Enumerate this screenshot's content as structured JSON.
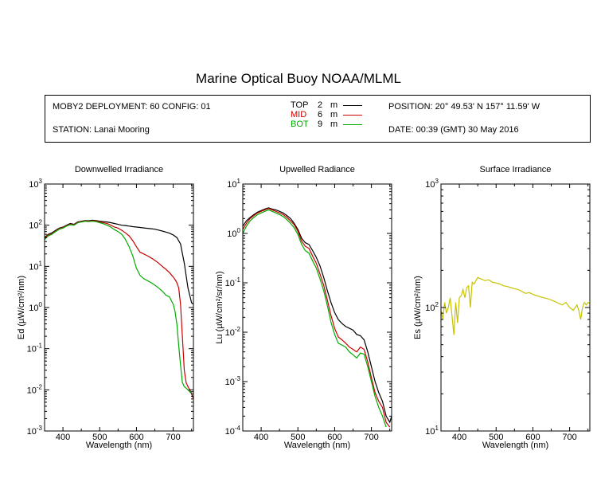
{
  "title": "Marine Optical Buoy NOAA/MLML",
  "info": {
    "deployment": "MOBY2 DEPLOYMENT: 60 CONFIG: 01",
    "station": "STATION: Lanai Mooring",
    "position": "POSITION: 20° 49.53' N   157° 11.59' W",
    "date": "DATE: 00:39 (GMT) 30 May 2016",
    "legend": [
      {
        "name": "TOP",
        "depth": "2",
        "unit": "m",
        "color": "#000000"
      },
      {
        "name": "MID",
        "depth": "6",
        "unit": "m",
        "color": "#cc0000"
      },
      {
        "name": "BOT",
        "depth": "9",
        "unit": "m",
        "color": "#00aa00"
      }
    ]
  },
  "chart_data": [
    {
      "type": "line",
      "title": "Downwelled Irradiance",
      "xlabel": "Wavelength (nm)",
      "ylabel": "Ed  (µW/cm²/nm)",
      "xlim": [
        350,
        755
      ],
      "ylim": [
        0.001,
        1000
      ],
      "yscale": "log",
      "xticks": [
        400,
        500,
        600,
        700
      ],
      "yticks": [
        {
          "value": 0.001,
          "base": "10",
          "exp": "-3"
        },
        {
          "value": 0.01,
          "base": "10",
          "exp": "-2"
        },
        {
          "value": 0.1,
          "base": "10",
          "exp": "-1"
        },
        {
          "value": 1,
          "base": "10",
          "exp": "0"
        },
        {
          "value": 10,
          "base": "10",
          "exp": "1"
        },
        {
          "value": 100,
          "base": "10",
          "exp": "2"
        },
        {
          "value": 1000,
          "base": "10",
          "exp": "3"
        }
      ],
      "series": [
        {
          "name": "TOP",
          "color": "#000000",
          "x": [
            350,
            360,
            370,
            380,
            390,
            400,
            410,
            420,
            430,
            440,
            450,
            460,
            470,
            480,
            490,
            500,
            510,
            520,
            530,
            540,
            550,
            560,
            570,
            580,
            590,
            600,
            610,
            620,
            630,
            640,
            650,
            660,
            670,
            680,
            690,
            700,
            710,
            720,
            730,
            740,
            750,
            755
          ],
          "y": [
            50,
            60,
            65,
            75,
            85,
            90,
            100,
            110,
            105,
            120,
            125,
            130,
            128,
            132,
            130,
            125,
            122,
            120,
            115,
            110,
            105,
            100,
            98,
            95,
            92,
            90,
            88,
            86,
            84,
            82,
            80,
            76,
            72,
            68,
            64,
            58,
            50,
            35,
            12,
            3,
            1.3,
            1.2
          ]
        },
        {
          "name": "MID",
          "color": "#cc0000",
          "x": [
            350,
            360,
            370,
            380,
            390,
            400,
            410,
            420,
            430,
            440,
            450,
            460,
            470,
            480,
            490,
            500,
            510,
            520,
            530,
            540,
            550,
            560,
            570,
            580,
            590,
            600,
            610,
            620,
            630,
            640,
            650,
            660,
            670,
            680,
            690,
            700,
            705,
            710,
            715,
            720,
            725,
            730,
            735,
            740,
            745,
            750,
            755
          ],
          "y": [
            48,
            58,
            62,
            72,
            82,
            88,
            97,
            106,
            102,
            117,
            122,
            127,
            125,
            128,
            126,
            120,
            115,
            110,
            100,
            90,
            85,
            75,
            65,
            55,
            42,
            30,
            22,
            20,
            18,
            16,
            14,
            12,
            10,
            8.5,
            7,
            5.5,
            4.8,
            4,
            3,
            1.2,
            0.2,
            0.03,
            0.015,
            0.012,
            0.01,
            0.008,
            0.006
          ]
        },
        {
          "name": "BOT",
          "color": "#00aa00",
          "x": [
            350,
            360,
            370,
            380,
            390,
            400,
            410,
            420,
            430,
            440,
            450,
            460,
            470,
            480,
            490,
            500,
            510,
            520,
            530,
            540,
            550,
            560,
            570,
            580,
            590,
            600,
            610,
            620,
            630,
            640,
            650,
            660,
            670,
            680,
            690,
            700,
            705,
            710,
            715,
            720,
            725,
            730,
            735,
            740,
            745,
            750
          ],
          "y": [
            45,
            55,
            60,
            70,
            80,
            85,
            95,
            103,
            100,
            114,
            120,
            124,
            122,
            125,
            122,
            115,
            108,
            100,
            90,
            78,
            70,
            60,
            45,
            30,
            18,
            9,
            6,
            5,
            4.5,
            4,
            3.5,
            3,
            2.5,
            2,
            1.8,
            1.2,
            0.8,
            0.4,
            0.12,
            0.04,
            0.015,
            0.012,
            0.011,
            0.01,
            0.009,
            0.008
          ]
        }
      ]
    },
    {
      "type": "line",
      "title": "Upwelled Radiance",
      "xlabel": "Wavelength (nm)",
      "ylabel": "Lu  (µW/cm²/sr/nm)",
      "xlim": [
        350,
        755
      ],
      "ylim": [
        0.0001,
        10
      ],
      "yscale": "log",
      "xticks": [
        400,
        500,
        600,
        700
      ],
      "yticks": [
        {
          "value": 0.0001,
          "base": "10",
          "exp": "-4"
        },
        {
          "value": 0.001,
          "base": "10",
          "exp": "-3"
        },
        {
          "value": 0.01,
          "base": "10",
          "exp": "-2"
        },
        {
          "value": 0.1,
          "base": "10",
          "exp": "-1"
        },
        {
          "value": 1,
          "base": "10",
          "exp": "0"
        },
        {
          "value": 10,
          "base": "10",
          "exp": "1"
        }
      ],
      "series": [
        {
          "name": "TOP",
          "color": "#000000",
          "x": [
            350,
            360,
            370,
            380,
            390,
            400,
            410,
            420,
            430,
            440,
            450,
            460,
            470,
            480,
            490,
            500,
            510,
            520,
            530,
            540,
            550,
            560,
            570,
            580,
            590,
            600,
            610,
            620,
            630,
            640,
            650,
            660,
            670,
            680,
            690,
            700,
            710,
            720,
            730,
            740,
            750,
            755
          ],
          "y": [
            1.4,
            1.8,
            2.1,
            2.4,
            2.7,
            2.9,
            3.1,
            3.3,
            3.1,
            3.0,
            2.8,
            2.6,
            2.3,
            2.0,
            1.6,
            1.2,
            0.8,
            0.65,
            0.6,
            0.45,
            0.33,
            0.22,
            0.13,
            0.07,
            0.04,
            0.025,
            0.018,
            0.015,
            0.013,
            0.012,
            0.011,
            0.009,
            0.0085,
            0.007,
            0.004,
            0.002,
            0.001,
            0.0006,
            0.0004,
            0.0002,
            0.00015,
            0.0002
          ]
        },
        {
          "name": "MID",
          "color": "#cc0000",
          "x": [
            350,
            360,
            370,
            380,
            390,
            400,
            410,
            420,
            430,
            440,
            450,
            460,
            470,
            480,
            490,
            500,
            510,
            520,
            530,
            540,
            550,
            560,
            570,
            580,
            590,
            600,
            610,
            620,
            630,
            640,
            650,
            660,
            670,
            680,
            690,
            700,
            710,
            720,
            730,
            740,
            750
          ],
          "y": [
            1.2,
            1.6,
            2.0,
            2.3,
            2.6,
            2.8,
            3.0,
            3.2,
            3.0,
            2.8,
            2.6,
            2.4,
            2.1,
            1.8,
            1.5,
            1.1,
            0.7,
            0.55,
            0.5,
            0.35,
            0.25,
            0.15,
            0.09,
            0.045,
            0.022,
            0.012,
            0.008,
            0.007,
            0.006,
            0.005,
            0.0045,
            0.004,
            0.005,
            0.0045,
            0.0025,
            0.0012,
            0.0006,
            0.0004,
            0.0003,
            0.00015,
            0.00012
          ]
        },
        {
          "name": "BOT",
          "color": "#00aa00",
          "x": [
            350,
            360,
            370,
            380,
            390,
            400,
            410,
            420,
            430,
            440,
            450,
            460,
            470,
            480,
            490,
            500,
            510,
            520,
            530,
            540,
            550,
            560,
            570,
            580,
            590,
            600,
            610,
            620,
            630,
            640,
            650,
            660,
            670,
            680,
            690,
            700,
            710,
            720,
            730,
            740
          ],
          "y": [
            1.0,
            1.4,
            1.8,
            2.1,
            2.4,
            2.6,
            2.8,
            3.0,
            2.8,
            2.6,
            2.4,
            2.2,
            1.9,
            1.6,
            1.3,
            0.95,
            0.6,
            0.45,
            0.4,
            0.28,
            0.2,
            0.12,
            0.07,
            0.035,
            0.016,
            0.009,
            0.006,
            0.0055,
            0.005,
            0.004,
            0.0035,
            0.003,
            0.0038,
            0.0036,
            0.002,
            0.001,
            0.0005,
            0.0003,
            0.0002,
            0.00012
          ]
        }
      ]
    },
    {
      "type": "line",
      "title": "Surface Irradiance",
      "xlabel": "Wavelength (nm)",
      "ylabel": "Es  (µW/cm²/nm)",
      "xlim": [
        350,
        755
      ],
      "ylim": [
        10,
        1000
      ],
      "yscale": "log",
      "xticks": [
        400,
        500,
        600,
        700
      ],
      "yticks": [
        {
          "value": 10,
          "base": "10",
          "exp": "1"
        },
        {
          "value": 100,
          "base": "10",
          "exp": "2"
        },
        {
          "value": 1000,
          "base": "10",
          "exp": "3"
        }
      ],
      "series": [
        {
          "name": "Es",
          "color": "#c8c400",
          "x": [
            350,
            355,
            360,
            365,
            370,
            375,
            380,
            385,
            390,
            395,
            400,
            405,
            410,
            415,
            420,
            425,
            430,
            435,
            440,
            445,
            450,
            460,
            470,
            480,
            490,
            500,
            510,
            520,
            530,
            540,
            550,
            560,
            570,
            580,
            590,
            600,
            610,
            620,
            630,
            640,
            650,
            660,
            670,
            680,
            690,
            700,
            710,
            720,
            725,
            730,
            735,
            740,
            745,
            750,
            755
          ],
          "y": [
            95,
            80,
            110,
            90,
            100,
            120,
            85,
            60,
            110,
            75,
            120,
            125,
            140,
            120,
            145,
            150,
            100,
            160,
            155,
            165,
            175,
            170,
            165,
            168,
            160,
            158,
            155,
            150,
            148,
            145,
            142,
            140,
            135,
            130,
            132,
            128,
            125,
            122,
            120,
            118,
            115,
            112,
            108,
            105,
            110,
            100,
            95,
            105,
            95,
            80,
            100,
            110,
            105,
            110,
            108
          ]
        }
      ]
    }
  ]
}
